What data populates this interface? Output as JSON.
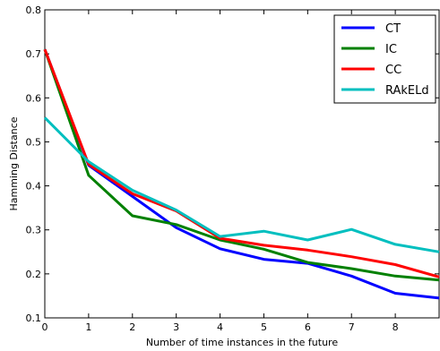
{
  "chart_data": {
    "type": "line",
    "title": "",
    "xlabel": "Number of time instances in the future",
    "ylabel": "Hamming Distance",
    "x": [
      0,
      1,
      2,
      3,
      4,
      5,
      6,
      7,
      8,
      9
    ],
    "xlim": [
      0,
      9
    ],
    "ylim": [
      0.1,
      0.8
    ],
    "xticks": [
      "0",
      "1",
      "2",
      "3",
      "4",
      "5",
      "6",
      "7",
      "8"
    ],
    "yticks": [
      "0.1",
      "0.2",
      "0.3",
      "0.4",
      "0.5",
      "0.6",
      "0.7",
      "0.8"
    ],
    "grid": false,
    "legend_position": "top-right",
    "series": [
      {
        "name": "CT",
        "color": "#0000ff",
        "values": [
          0.71,
          0.447,
          0.376,
          0.305,
          0.257,
          0.233,
          0.224,
          0.195,
          0.156,
          0.145
        ]
      },
      {
        "name": "IC",
        "color": "#008000",
        "values": [
          0.71,
          0.424,
          0.332,
          0.312,
          0.277,
          0.256,
          0.226,
          0.212,
          0.195,
          0.186
        ]
      },
      {
        "name": "CC",
        "color": "#ff0000",
        "values": [
          0.71,
          0.449,
          0.382,
          0.343,
          0.281,
          0.265,
          0.254,
          0.239,
          0.221,
          0.193
        ]
      },
      {
        "name": "RAkELd",
        "color": "#00bfbf",
        "values": [
          0.555,
          0.455,
          0.39,
          0.345,
          0.285,
          0.297,
          0.277,
          0.301,
          0.267,
          0.25
        ]
      }
    ]
  }
}
